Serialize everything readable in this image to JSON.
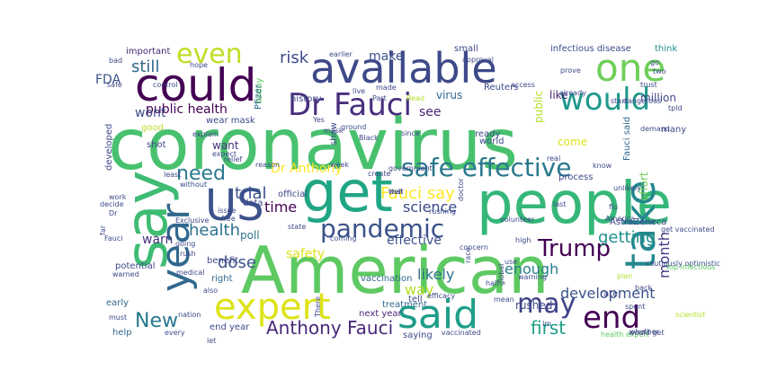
{
  "word_cloud": {
    "words": [
      {
        "text": "coronavirus",
        "color": "#48c16e"
      },
      {
        "text": "American",
        "color": "#5ec962"
      },
      {
        "text": "say",
        "color": "#3fbc73"
      },
      {
        "text": "people",
        "color": "#35b779"
      },
      {
        "text": "get",
        "color": "#21a685"
      },
      {
        "text": "US",
        "color": "#3b528b"
      },
      {
        "text": "available",
        "color": "#3e4989"
      },
      {
        "text": "could",
        "color": "#440154"
      },
      {
        "text": "one",
        "color": "#6ece58"
      },
      {
        "text": "Dr Fauci",
        "color": "#472f7d"
      },
      {
        "text": "said",
        "color": "#1f9e89"
      },
      {
        "text": "take",
        "color": "#23888e"
      },
      {
        "text": "year",
        "color": "#31688e"
      },
      {
        "text": "expert",
        "color": "#dde318"
      },
      {
        "text": "safe effective",
        "color": "#2a788e"
      },
      {
        "text": "would",
        "color": "#1f988b"
      },
      {
        "text": "pandemic",
        "color": "#3b528b"
      },
      {
        "text": "end",
        "color": "#440154"
      },
      {
        "text": "may",
        "color": "#414487"
      },
      {
        "text": "Trump",
        "color": "#440154"
      },
      {
        "text": "even",
        "color": "#bddf26"
      },
      {
        "text": "need",
        "color": "#2a788e"
      },
      {
        "text": "Anthony Fauci",
        "color": "#482878"
      },
      {
        "text": "New",
        "color": "#2a788e"
      },
      {
        "text": "Fauci say",
        "color": "#fde725"
      },
      {
        "text": "getting",
        "color": "#21918c"
      },
      {
        "text": "science",
        "color": "#3e4989"
      },
      {
        "text": "first",
        "color": "#1f9e89"
      },
      {
        "text": "time",
        "color": "#440154"
      },
      {
        "text": "still",
        "color": "#31688e"
      },
      {
        "text": "risk",
        "color": "#3e4989"
      },
      {
        "text": "month",
        "color": "#443983"
      },
      {
        "text": "trial",
        "color": "#3b528b"
      },
      {
        "text": "likely",
        "color": "#2c728e"
      },
      {
        "text": "health",
        "color": "#2c728e"
      },
      {
        "text": "dose",
        "color": "#3b528b"
      },
      {
        "text": "way",
        "color": "#b5de2b"
      },
      {
        "text": "Dr Anthony",
        "color": "#fde725"
      },
      {
        "text": "enough",
        "color": "#277f8e"
      },
      {
        "text": "development",
        "color": "#3b528b"
      },
      {
        "text": "public health",
        "color": "#440154"
      },
      {
        "text": "make",
        "color": "#3b528b"
      },
      {
        "text": "wont",
        "color": "#3e4989"
      },
      {
        "text": "see",
        "color": "#482475"
      },
      {
        "text": "FDA",
        "color": "#3b528b"
      },
      {
        "text": "effective",
        "color": "#3b528b"
      },
      {
        "text": "safety",
        "color": "#dde318"
      },
      {
        "text": "like",
        "color": "#481f70"
      },
      {
        "text": "come",
        "color": "#dde318"
      },
      {
        "text": "million",
        "color": "#3e4989"
      },
      {
        "text": "warn",
        "color": "#46337e"
      },
      {
        "text": "want",
        "color": "#46337e"
      },
      {
        "text": "infectious disease",
        "color": "#3e4989"
      },
      {
        "text": "think",
        "color": "#21918c"
      },
      {
        "text": "rushed",
        "color": "#3e4989"
      },
      {
        "text": "poll",
        "color": "#2c728e"
      },
      {
        "text": "process",
        "color": "#3e4989"
      },
      {
        "text": "virus",
        "color": "#31688e"
      },
      {
        "text": "important",
        "color": "#482878"
      },
      {
        "text": "wear mask",
        "color": "#3e4989"
      },
      {
        "text": "today",
        "color": "#5ec962"
      },
      {
        "text": "developed",
        "color": "#3e4989"
      },
      {
        "text": "show",
        "color": "#3e4989"
      },
      {
        "text": "public",
        "color": "#b5de2b"
      },
      {
        "text": "Reuters",
        "color": "#3e4989"
      },
      {
        "text": "Fauci said",
        "color": "#31688e"
      },
      {
        "text": "effort",
        "color": "#6ece58"
      },
      {
        "text": "tell",
        "color": "#3e4989"
      },
      {
        "text": "treatment",
        "color": "#31688e"
      },
      {
        "text": "early",
        "color": "#31688e"
      },
      {
        "text": "help",
        "color": "#31688e"
      },
      {
        "text": "end year",
        "color": "#3e4989"
      },
      {
        "text": "saying",
        "color": "#3e4989"
      },
      {
        "text": "vaccination",
        "color": "#31688e"
      },
      {
        "text": "next year",
        "color": "#482878"
      },
      {
        "text": "right",
        "color": "#31688e"
      },
      {
        "text": "benefit",
        "color": "#3e4989"
      },
      {
        "text": "potential",
        "color": "#3e4989"
      },
      {
        "text": "AstraZeneca",
        "color": "#3e4989"
      },
      {
        "text": "Pfizer",
        "color": "#31688e"
      },
      {
        "text": "history",
        "color": "#3e4989"
      },
      {
        "text": "rate",
        "color": "#3e4989"
      },
      {
        "text": "data",
        "color": "#3e4989"
      },
      {
        "text": "official",
        "color": "#3e4989"
      },
      {
        "text": "good",
        "color": "#b5de2b"
      },
      {
        "text": "shot",
        "color": "#3e4989"
      },
      {
        "text": "ready",
        "color": "#3e4989"
      },
      {
        "text": "world",
        "color": "#3e4989"
      },
      {
        "text": "many",
        "color": "#3e4989"
      },
      {
        "text": "small",
        "color": "#3e4989"
      },
      {
        "text": "trust",
        "color": "#3e4989"
      },
      {
        "text": "demand",
        "color": "#3e4989"
      },
      {
        "text": "concern",
        "color": "#3e4989"
      },
      {
        "text": "high",
        "color": "#3e4989"
      },
      {
        "text": "mean",
        "color": "#3e4989"
      },
      {
        "text": "Dr",
        "color": "#3e4989"
      },
      {
        "text": "work",
        "color": "#3e4989"
      },
      {
        "text": "must",
        "color": "#3e4989"
      },
      {
        "text": "every",
        "color": "#3e4989"
      },
      {
        "text": "bad",
        "color": "#3e4989"
      },
      {
        "text": "safe",
        "color": "#3e4989"
      },
      {
        "text": "control",
        "color": "#3e4989"
      },
      {
        "text": "hope",
        "color": "#3e4989"
      },
      {
        "text": "Exclusive",
        "color": "#3e4989"
      },
      {
        "text": "going",
        "color": "#3e4989"
      },
      {
        "text": "rush",
        "color": "#3e4989"
      },
      {
        "text": "Fauci",
        "color": "#3e4989"
      },
      {
        "text": "also",
        "color": "#3e4989"
      },
      {
        "text": "volunteer",
        "color": "#3e4989"
      },
      {
        "text": "race",
        "color": "#3e4989"
      },
      {
        "text": "doctor",
        "color": "#3e4989"
      },
      {
        "text": "approval",
        "color": "#3e4989"
      },
      {
        "text": "spent",
        "color": "#3e4989"
      },
      {
        "text": "whether",
        "color": "#3e4989"
      },
      {
        "text": "start",
        "color": "#3e4989"
      },
      {
        "text": "cautiously optimistic",
        "color": "#3e4989"
      },
      {
        "text": "get vaccinated",
        "color": "#3e4989"
      },
      {
        "text": "without",
        "color": "#3e4989"
      },
      {
        "text": "vaccinated",
        "color": "#3e4989"
      },
      {
        "text": "health expert",
        "color": "#5ec962"
      },
      {
        "text": "top infectious",
        "color": "#5ec962"
      },
      {
        "text": "lm",
        "color": "#3e4989"
      },
      {
        "text": "would get",
        "color": "#3e4989"
      },
      {
        "text": "scientist",
        "color": "#b5de2b"
      },
      {
        "text": "dangerous",
        "color": "#3e4989"
      },
      {
        "text": "tpld",
        "color": "#3e4989"
      },
      {
        "text": "already",
        "color": "#3e4989"
      },
      {
        "text": "earlier",
        "color": "#3e4989"
      },
      {
        "text": "live",
        "color": "#3e4989"
      },
      {
        "text": "made",
        "color": "#3e4989"
      },
      {
        "text": "Black",
        "color": "#3e4989"
      },
      {
        "text": "explain",
        "color": "#3e4989"
      },
      {
        "text": "expect",
        "color": "#3e4989"
      },
      {
        "text": "relief",
        "color": "#3e4989"
      },
      {
        "text": "government",
        "color": "#3e4989"
      },
      {
        "text": "since",
        "color": "#3e4989"
      },
      {
        "text": "know",
        "color": "#3e4989"
      },
      {
        "text": "unlikely",
        "color": "#3e4989"
      },
      {
        "text": "use",
        "color": "#3e4989"
      },
      {
        "text": "global",
        "color": "#3e4989"
      },
      {
        "text": "warning",
        "color": "#3e4989"
      },
      {
        "text": "efficacy",
        "color": "#3e4989"
      },
      {
        "text": "create",
        "color": "#3e4989"
      },
      {
        "text": "nation",
        "color": "#3e4989"
      },
      {
        "text": "medical",
        "color": "#3e4989"
      },
      {
        "text": "warned",
        "color": "#3e4989"
      },
      {
        "text": "There",
        "color": "#3e4989"
      },
      {
        "text": "coming",
        "color": "#3e4989"
      },
      {
        "text": "rushing",
        "color": "#3e4989"
      },
      {
        "text": "real",
        "color": "#3e4989"
      },
      {
        "text": "America",
        "color": "#3e4989"
      },
      {
        "text": "plan",
        "color": "#b5de2b"
      },
      {
        "text": "least",
        "color": "#3e4989"
      },
      {
        "text": "decide",
        "color": "#3e4989"
      },
      {
        "text": "free",
        "color": "#3e4989"
      },
      {
        "text": "let",
        "color": "#3e4989"
      },
      {
        "text": "state",
        "color": "#3e4989"
      },
      {
        "text": "mask",
        "color": "#3e4989"
      },
      {
        "text": "Yes",
        "color": "#3e4989"
      },
      {
        "text": "Read",
        "color": "#b5de2b"
      },
      {
        "text": "access",
        "color": "#3e4989"
      },
      {
        "text": "prove",
        "color": "#3e4989"
      },
      {
        "text": "go",
        "color": "#3e4989"
      },
      {
        "text": "back",
        "color": "#3e4989"
      },
      {
        "text": "flu",
        "color": "#3e4989"
      },
      {
        "text": "last",
        "color": "#3e4989"
      },
      {
        "text": "two",
        "color": "#3e4989"
      },
      {
        "text": "Part",
        "color": "#3e4989"
      },
      {
        "text": "week",
        "color": "#3e4989"
      },
      {
        "text": "reason",
        "color": "#3e4989"
      },
      {
        "text": "issue",
        "color": "#3e4989"
      },
      {
        "text": "far",
        "color": "#3e4989"
      },
      {
        "text": "ground",
        "color": "#3e4989"
      },
      {
        "text": "half",
        "color": "#3e4989"
      },
      {
        "text": "well",
        "color": "#3e4989"
      },
      {
        "text": "that",
        "color": "#3e4989"
      }
    ]
  }
}
